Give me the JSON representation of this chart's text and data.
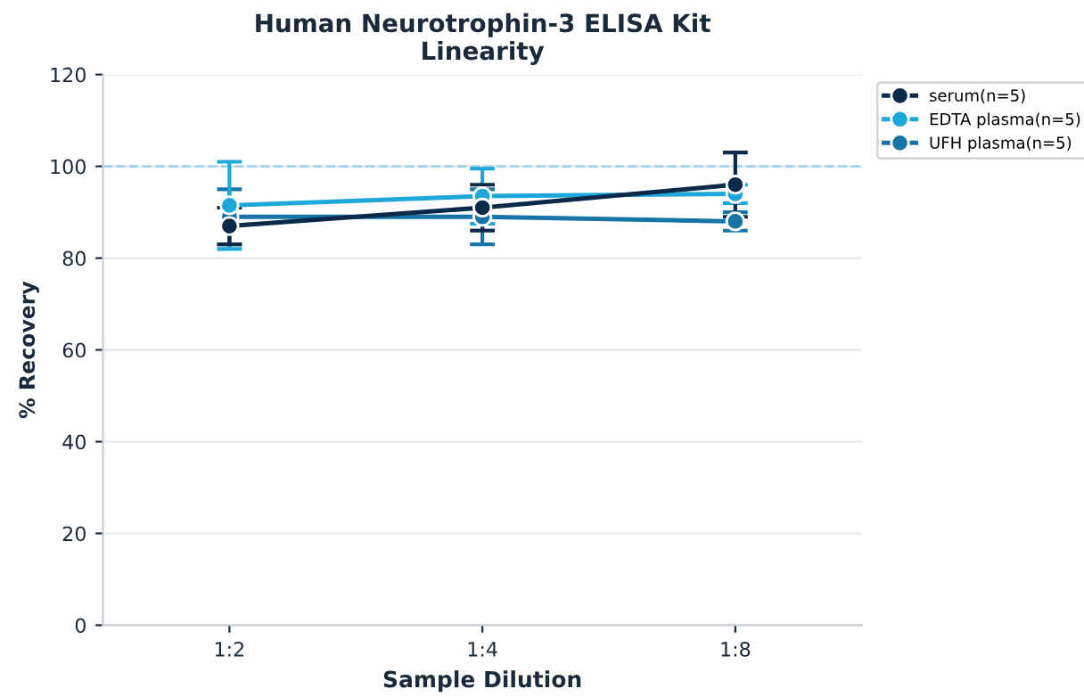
{
  "chart_data": {
    "type": "line",
    "title": "Human Neurotrophin-3 ELISA Kit\nLinearity",
    "xlabel": "Sample Dilution",
    "ylabel": "% Recovery",
    "categories": [
      "1:2",
      "1:4",
      "1:8"
    ],
    "series": [
      {
        "name": "serum(n=5)",
        "color": "#0b2a4a",
        "values": [
          87,
          91,
          96
        ],
        "errors": [
          4,
          5,
          7
        ]
      },
      {
        "name": "EDTA plasma(n=5)",
        "color": "#1ea8d9",
        "values": [
          91.5,
          93.5,
          94
        ],
        "errors": [
          9.5,
          6,
          2
        ]
      },
      {
        "name": "UFH plasma(n=5)",
        "color": "#1874a6",
        "values": [
          89,
          89,
          88
        ],
        "errors": [
          6,
          6,
          2
        ]
      }
    ],
    "ylim": [
      0,
      120
    ],
    "yticks": [
      0,
      20,
      40,
      60,
      80,
      100,
      120
    ],
    "ref_lines": [
      {
        "axis": "y",
        "value": 100,
        "color": "#9fd3ea",
        "line_style": "dashed"
      }
    ],
    "grid": "y",
    "legend": "top right",
    "marker": "circle",
    "line_style": "solid"
  }
}
